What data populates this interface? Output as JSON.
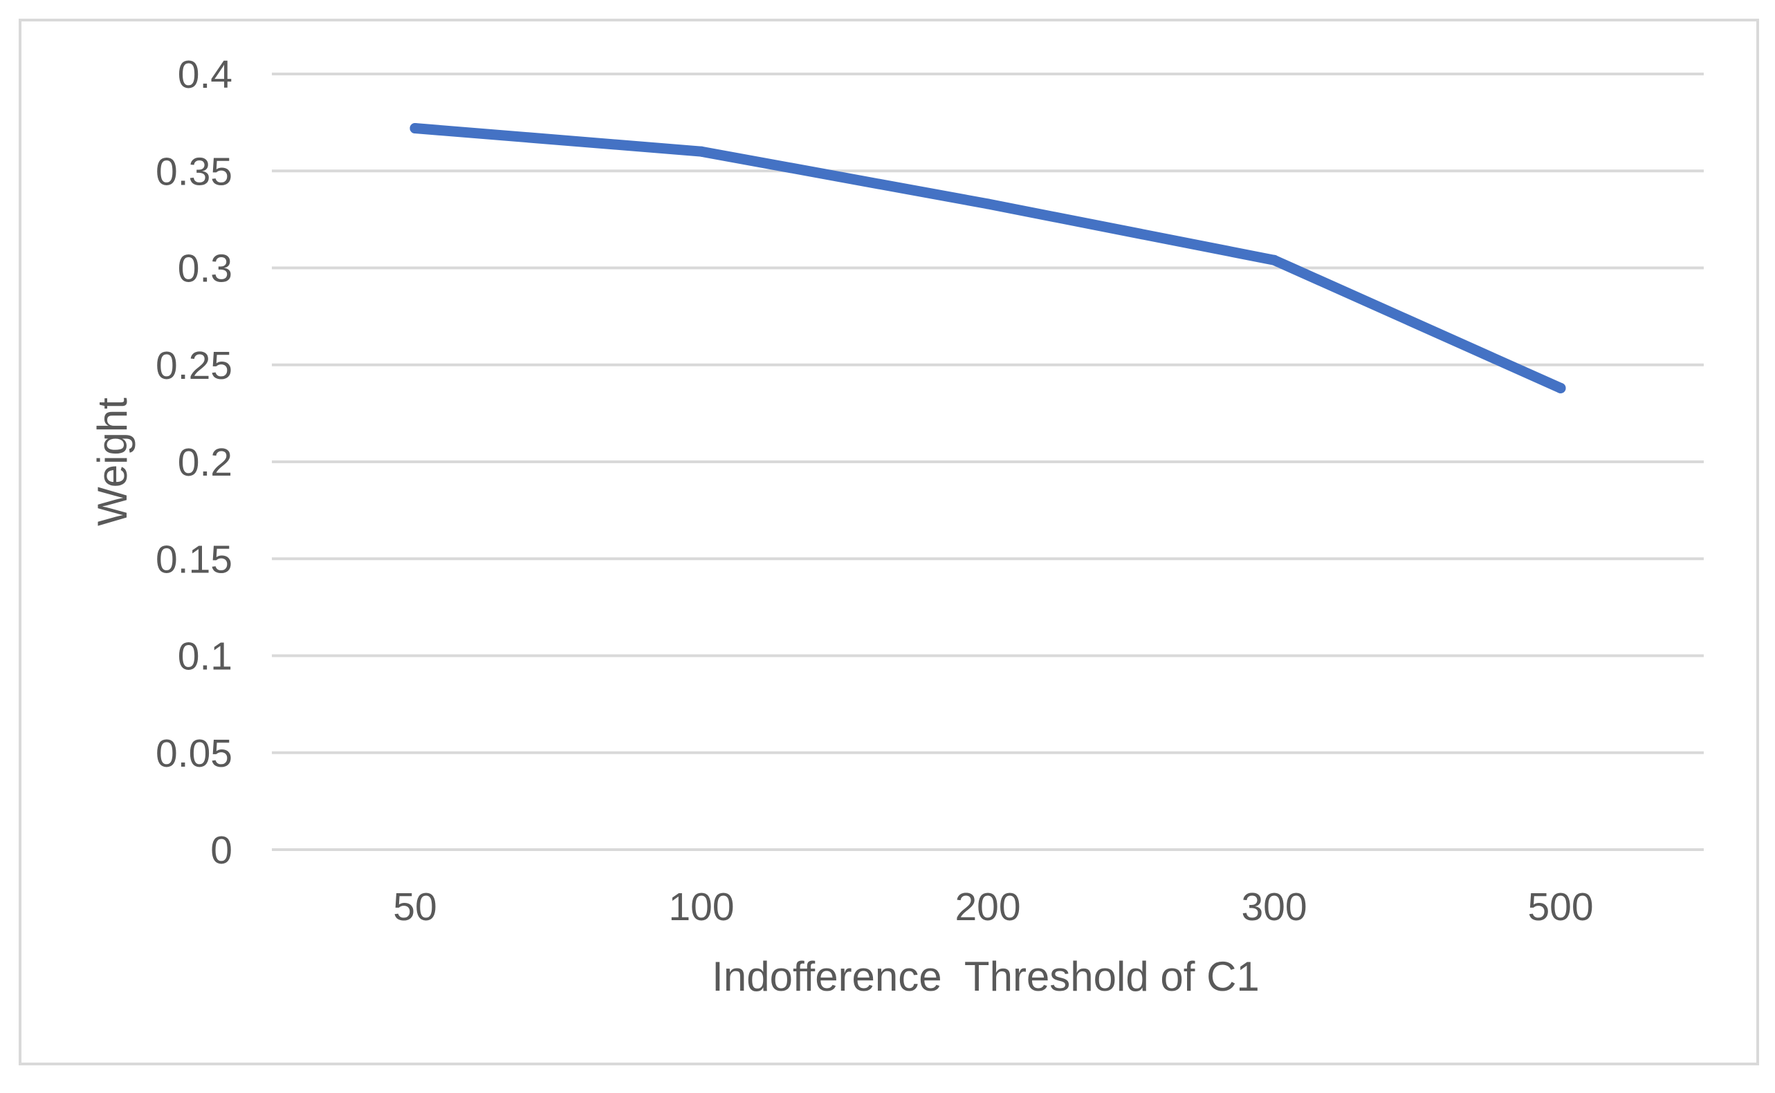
{
  "chart_data": {
    "type": "line",
    "title": "",
    "xlabel": "Indofference  Threshold of C1",
    "ylabel": "Weight",
    "categories": [
      "50",
      "100",
      "200",
      "300",
      "500"
    ],
    "series": [
      {
        "values": [
          0.372,
          0.36,
          0.333,
          0.304,
          0.238
        ],
        "color": "#4472c4"
      }
    ],
    "ylim": [
      0,
      0.4
    ],
    "yticks": [
      0,
      0.05,
      0.1,
      0.15,
      0.2,
      0.25,
      0.3,
      0.35,
      0.4
    ],
    "ytick_labels": [
      "0",
      "0.05",
      "0.1",
      "0.15",
      "0.2",
      "0.25",
      "0.3",
      "0.35",
      "0.4"
    ],
    "grid": true,
    "legend": "none",
    "colors": {
      "gridline": "#d9d9d9",
      "text": "#595959",
      "border": "#d9d9d9"
    }
  }
}
